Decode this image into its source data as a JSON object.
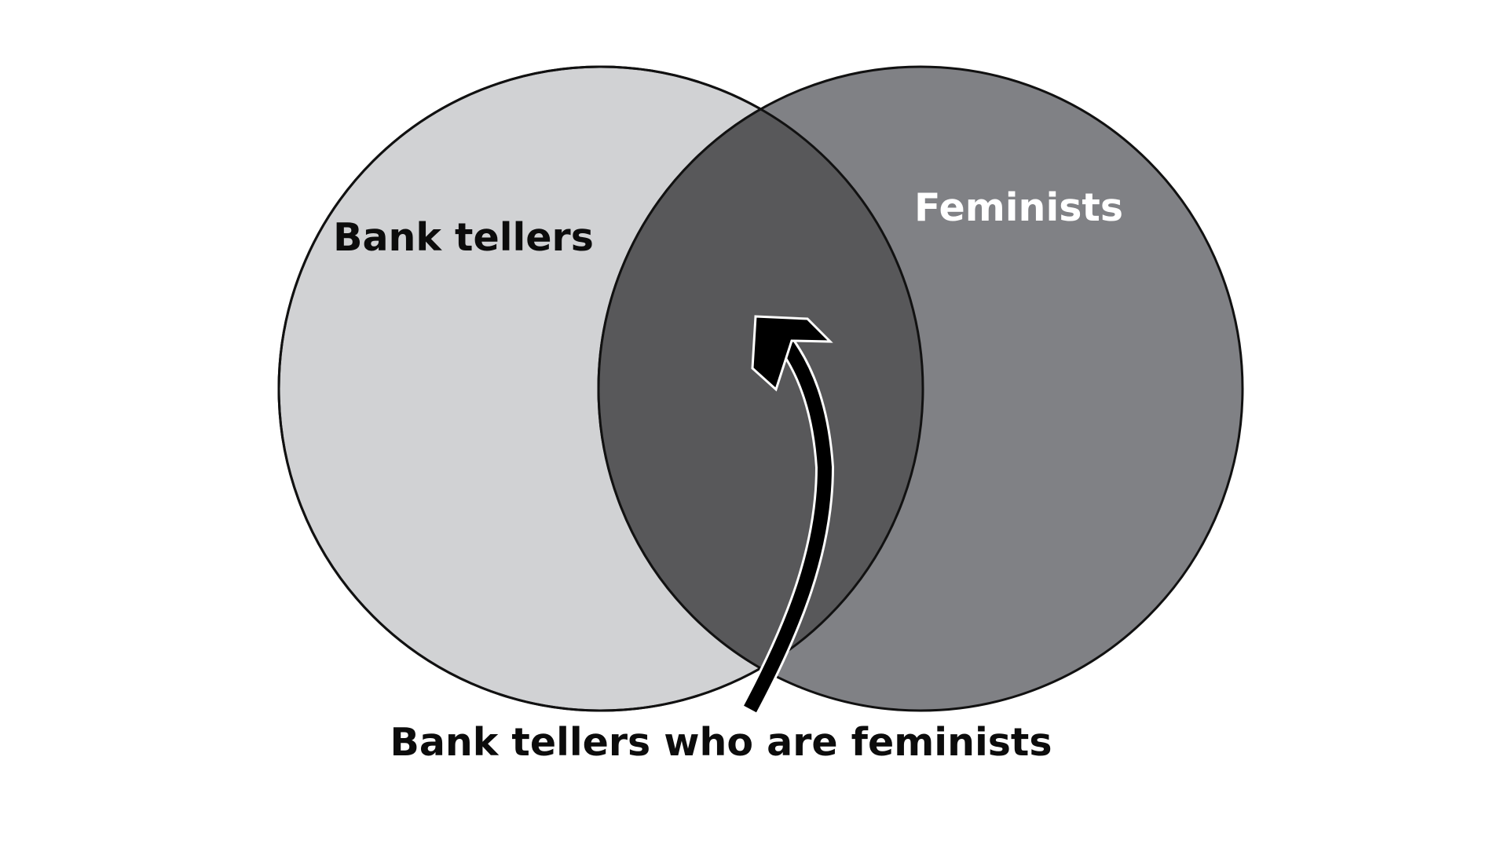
{
  "diagram": {
    "sets": [
      {
        "label": "Bank tellers",
        "fill": "#d1d2d4",
        "text_color": "#0c0c0c"
      },
      {
        "label": "Feminists",
        "fill": "#808185",
        "text_color": "#ffffff"
      }
    ],
    "intersection": {
      "label": "Bank tellers who are feminists",
      "fill": "#58585a",
      "text_color": "#0c0c0c"
    },
    "outline_color": "#111111",
    "arrow_color": "#000000",
    "arrow_outline_color": "#ffffff"
  }
}
